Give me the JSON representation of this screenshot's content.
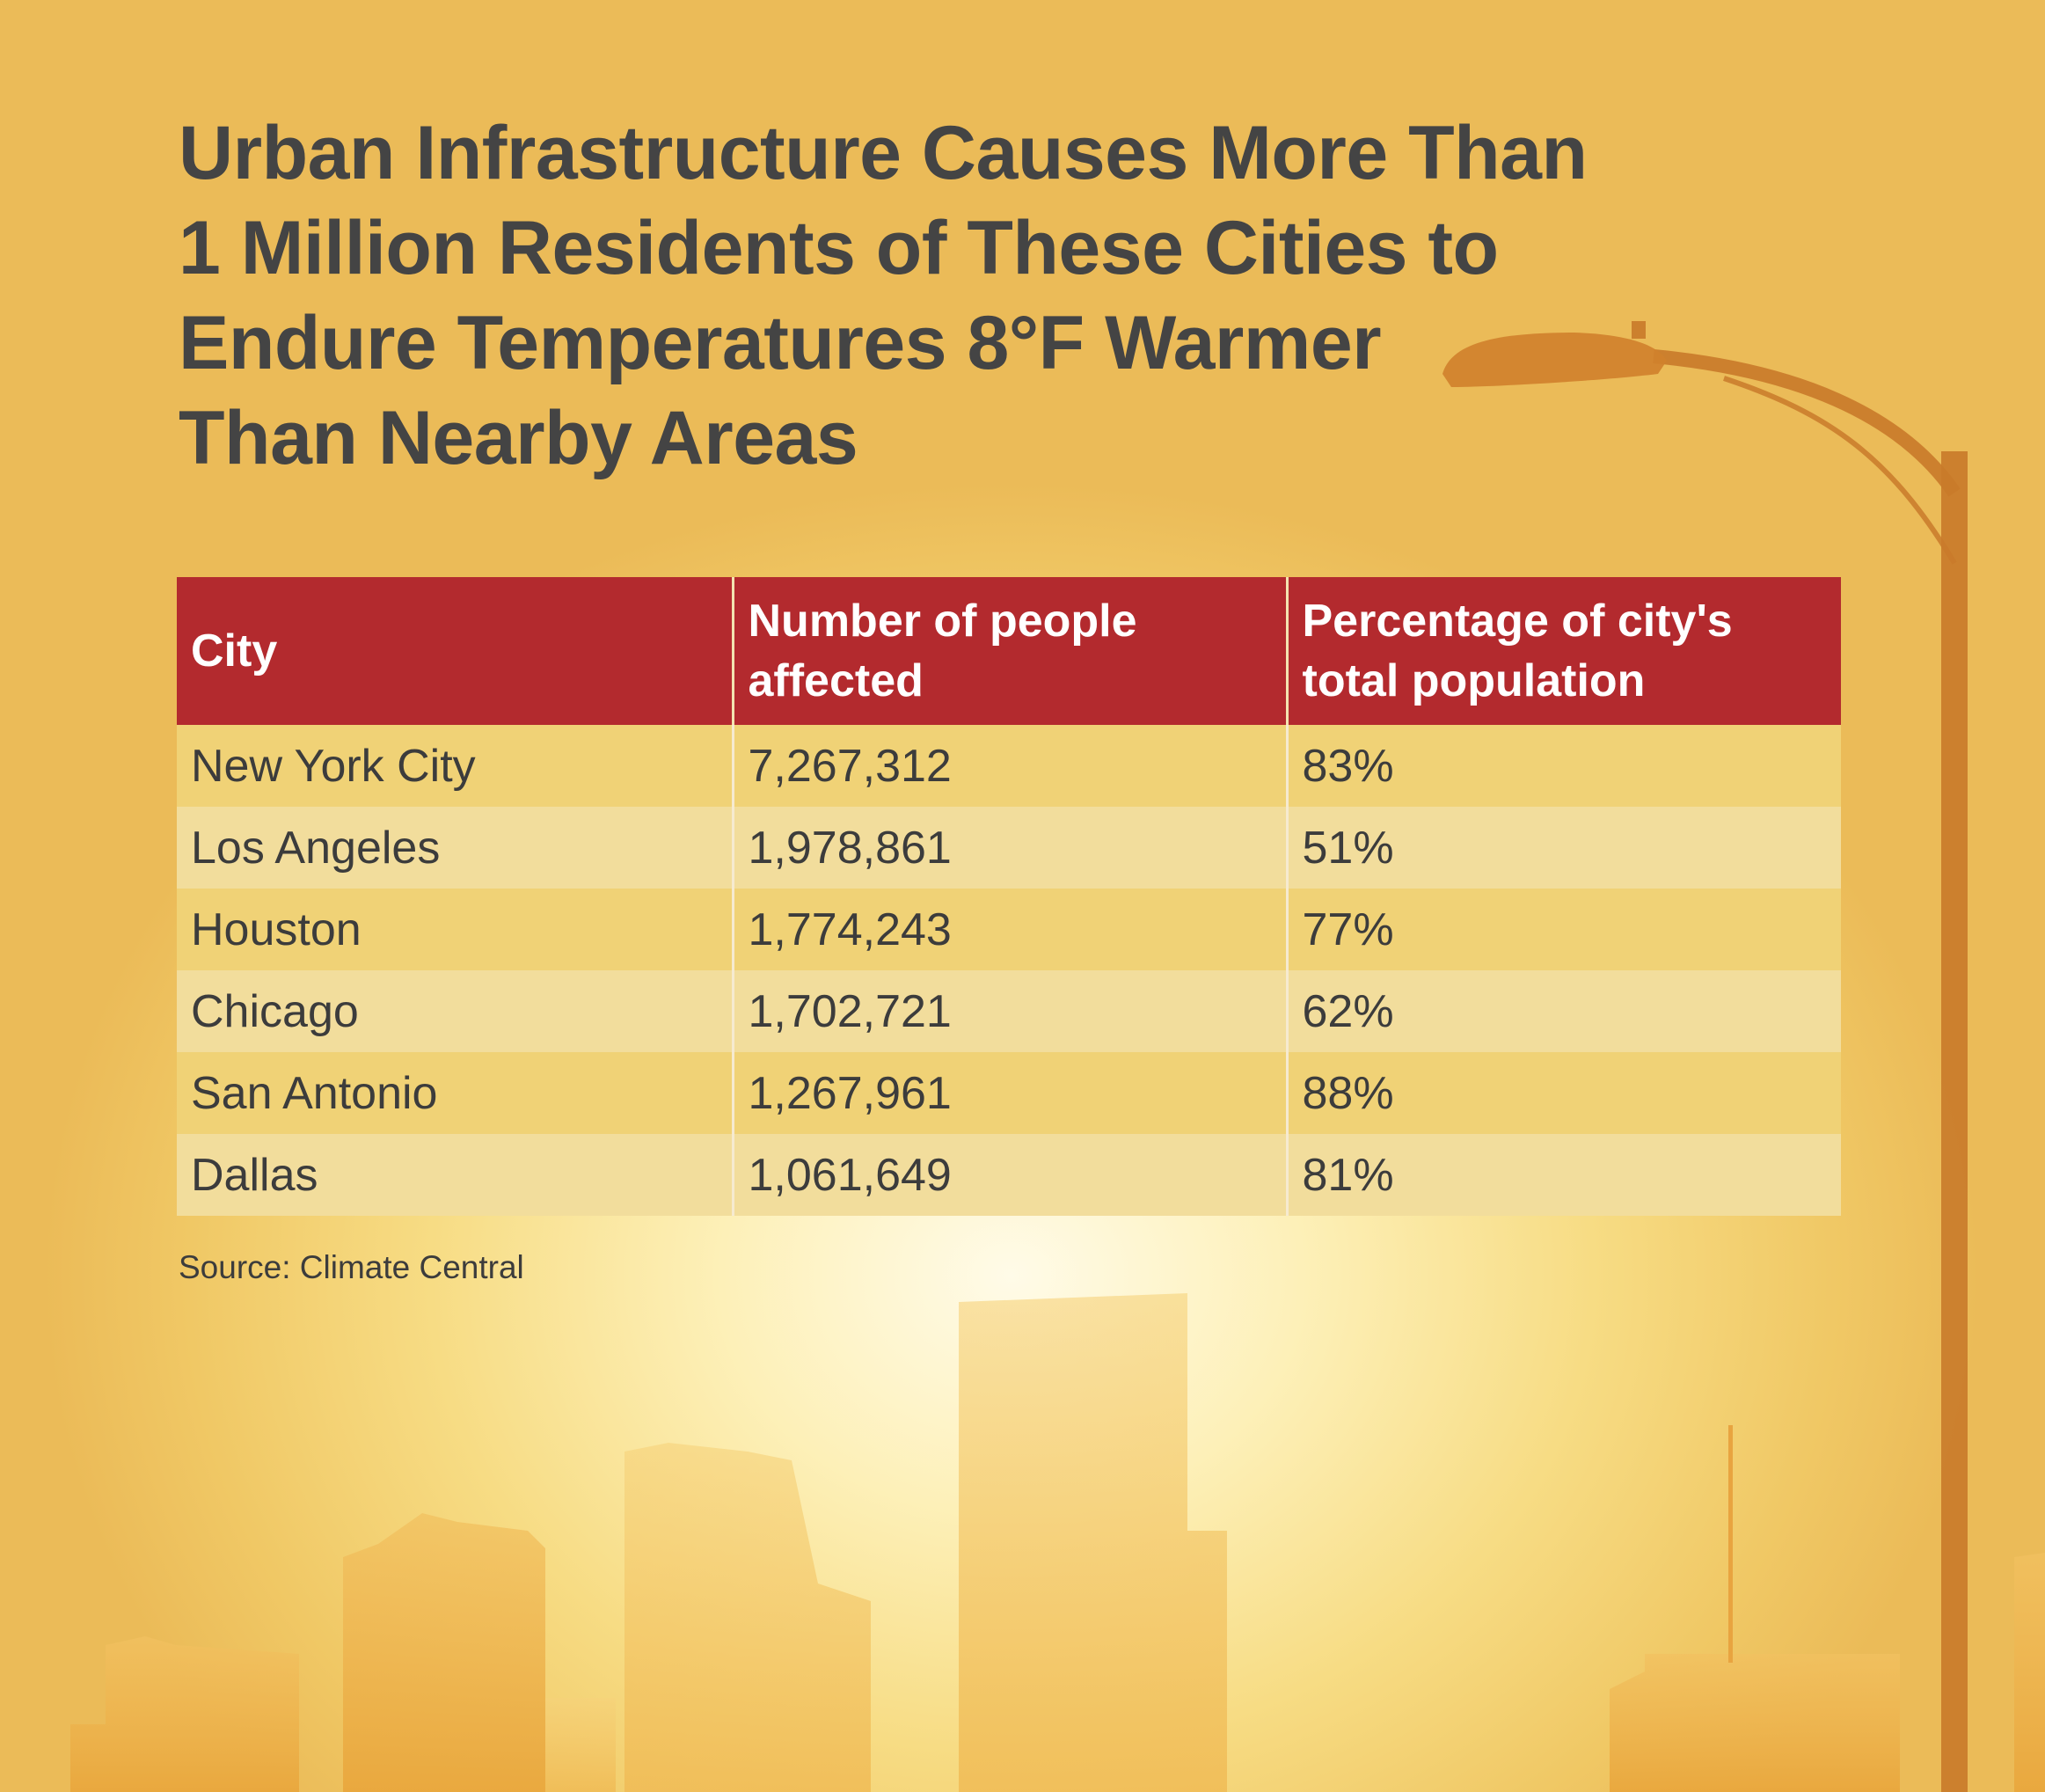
{
  "title_lines": [
    "Urban Infrastructure Causes More Than",
    "1 Million Residents of These Cities to",
    "Endure Temperatures 8°F Warmer",
    "Than Nearby Areas"
  ],
  "source": "Source: Climate Central",
  "chart_data": {
    "type": "table",
    "title": "Urban Infrastructure Causes More Than 1 Million Residents of These Cities to Endure Temperatures 8°F Warmer Than Nearby Areas",
    "columns": [
      "City",
      "Number of people affected",
      "Percentage of city's total population"
    ],
    "rows": [
      [
        "New York City",
        "7,267,312",
        "83%"
      ],
      [
        "Los Angeles",
        "1,978,861",
        "51%"
      ],
      [
        "Houston",
        "1,774,243",
        "77%"
      ],
      [
        "Chicago",
        "1,702,721",
        "62%"
      ],
      [
        "San Antonio",
        "1,267,961",
        "88%"
      ],
      [
        "Dallas",
        "1,061,649",
        "81%"
      ]
    ],
    "colors": {
      "header": "#b32a2e",
      "row_odd": "#f0d276",
      "row_even": "#f2dd9c",
      "text": "#444444"
    }
  }
}
